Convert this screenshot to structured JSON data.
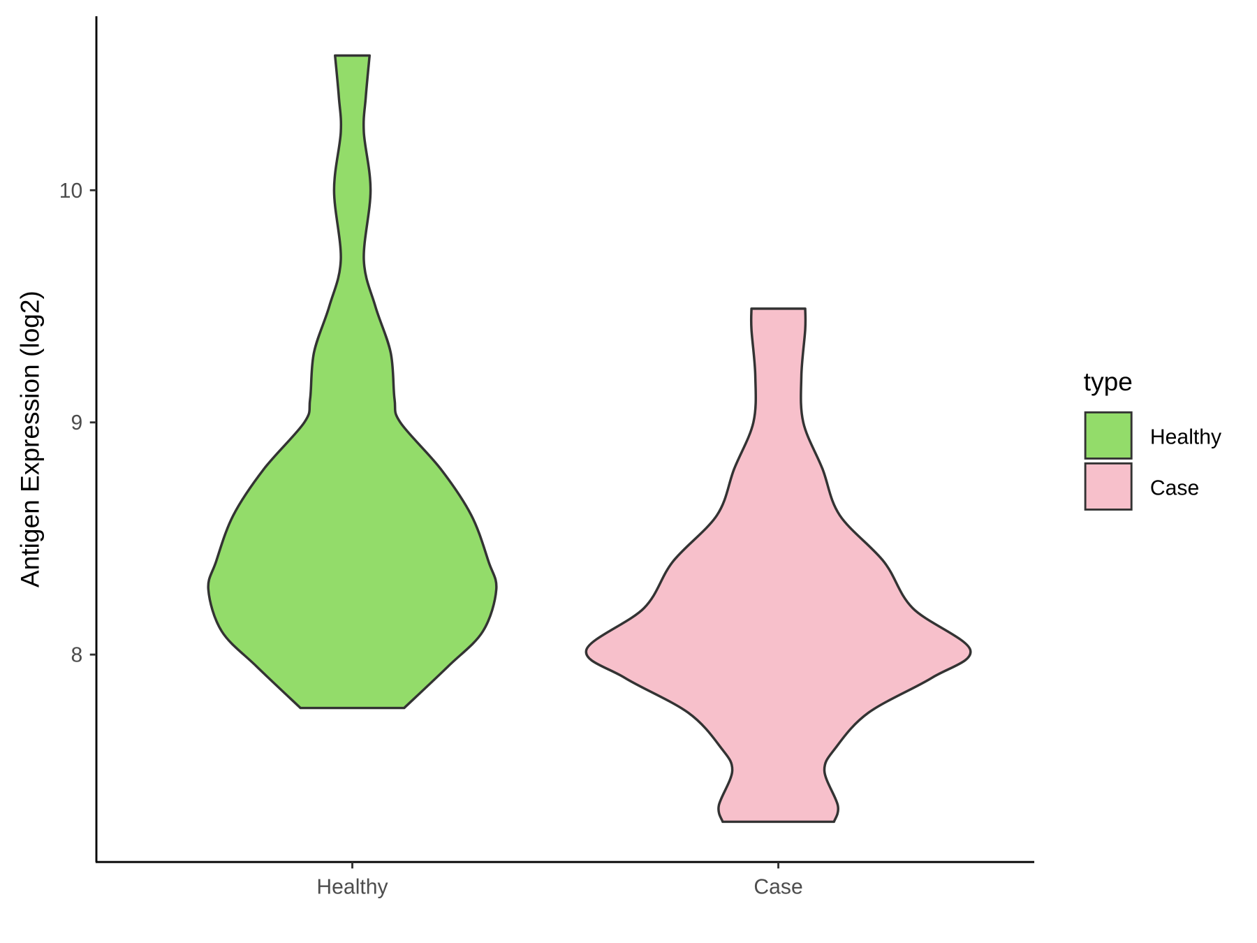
{
  "chart_data": {
    "type": "violin",
    "title": "",
    "xlabel": "",
    "ylabel": "Antigen Expression (log2)",
    "categories": [
      "Healthy",
      "Case"
    ],
    "ylim": [
      7.1,
      10.75
    ],
    "yticks": [
      8,
      9,
      10
    ],
    "grid": false,
    "legend": {
      "title": "type",
      "position": "right",
      "entries": [
        "Healthy",
        "Case"
      ]
    },
    "colors": {
      "Healthy": "#93DC6A",
      "Case": "#F7C0CB",
      "outline": "#333333"
    },
    "series": [
      {
        "name": "Healthy",
        "min": 7.77,
        "max": 10.58,
        "density_profile": {
          "y": [
            7.77,
            7.95,
            8.1,
            8.28,
            8.4,
            8.6,
            8.8,
            9.0,
            9.1,
            9.3,
            9.5,
            9.7,
            10.0,
            10.25,
            10.4,
            10.58
          ],
          "relative_width": [
            0.27,
            0.5,
            0.68,
            0.75,
            0.71,
            0.62,
            0.46,
            0.25,
            0.22,
            0.2,
            0.12,
            0.06,
            0.095,
            0.06,
            0.07,
            0.09
          ]
        }
      },
      {
        "name": "Case",
        "min": 7.28,
        "max": 9.49,
        "density_profile": {
          "y": [
            7.28,
            7.35,
            7.5,
            7.6,
            7.75,
            7.9,
            8.02,
            8.2,
            8.4,
            8.6,
            8.8,
            9.0,
            9.2,
            9.4,
            9.49
          ],
          "relative_width": [
            0.29,
            0.31,
            0.24,
            0.3,
            0.47,
            0.8,
            1.0,
            0.7,
            0.55,
            0.32,
            0.23,
            0.13,
            0.12,
            0.14,
            0.14
          ]
        }
      }
    ]
  }
}
